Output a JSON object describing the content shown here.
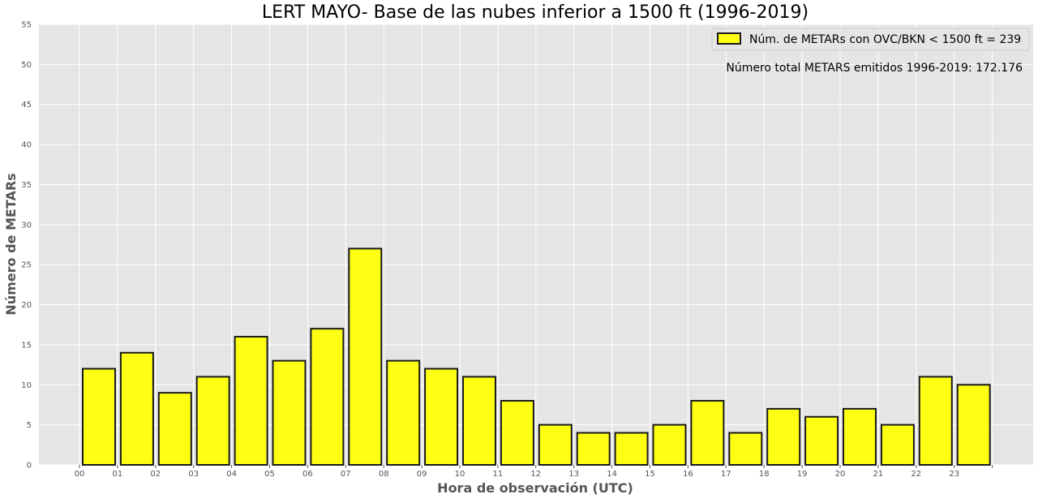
{
  "chart_data": {
    "type": "bar",
    "title": "LERT MAYO- Base de las nubes inferior a 1500 ft (1996-2019)",
    "xlabel": "Hora de observación (UTC)",
    "ylabel": "Número de METARs",
    "categories": [
      "00",
      "01",
      "02",
      "03",
      "04",
      "05",
      "06",
      "07",
      "08",
      "09",
      "10",
      "11",
      "12",
      "13",
      "14",
      "15",
      "16",
      "17",
      "18",
      "19",
      "20",
      "21",
      "22",
      "23"
    ],
    "series": [
      {
        "name": "Núm. de METARs con OVC/BKN < 1500 ft = 239",
        "values": [
          12,
          14,
          9,
          11,
          16,
          13,
          17,
          27,
          13,
          12,
          11,
          8,
          5,
          4,
          4,
          5,
          8,
          4,
          7,
          6,
          7,
          5,
          11,
          10
        ]
      }
    ],
    "ylim": [
      0,
      55
    ],
    "yticks": [
      0,
      5,
      10,
      15,
      20,
      25,
      30,
      35,
      40,
      45,
      50,
      55
    ],
    "grid": true,
    "legend_position": "top-right",
    "annotation": "Número total METARS emitidos 1996-2019: 172.176",
    "colors": {
      "bar_fill": "#ffff14",
      "bar_edge": "#1a1a1a",
      "plot_background": "#e5e5e5",
      "grid": "#ffffff",
      "label_text": "#555555"
    }
  }
}
